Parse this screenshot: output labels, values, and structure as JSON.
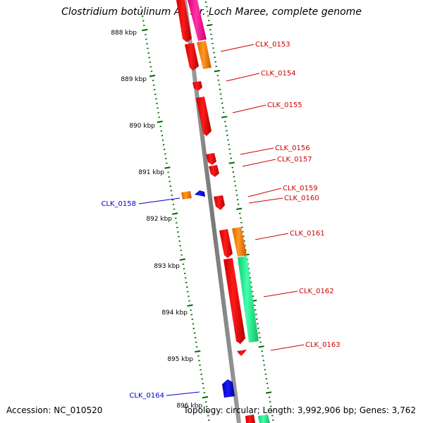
{
  "title": "Clostridium botulinum A3 str. Loch Maree, complete genome",
  "accession": "Accession: NC_010520",
  "summary": "Topology: circular; Length: 3,992,906 bp; Genes: 3,762",
  "kbp_ticks": [
    "888 kbp",
    "889 kbp",
    "890 kbp",
    "891 kbp",
    "892 kbp",
    "893 kbp",
    "894 kbp",
    "895 kbp",
    "896 kbp"
  ],
  "forward_genes": [
    {
      "label": "CLK_0153",
      "color": "#ff0000"
    },
    {
      "label": "CLK_0154",
      "color": "#ff0000"
    },
    {
      "label": "CLK_0155",
      "color": "#ff0000"
    },
    {
      "label": "CLK_0156",
      "color": "#ff0000"
    },
    {
      "label": "CLK_0157",
      "color": "#ff0000"
    },
    {
      "label": "CLK_0159",
      "color": "#ff0000"
    },
    {
      "label": "CLK_0160",
      "color": "#ff0000"
    },
    {
      "label": "CLK_0161",
      "color": "#ff0000"
    },
    {
      "label": "CLK_0162",
      "color": "#ff0000"
    },
    {
      "label": "CLK_0163",
      "color": "#ff0000"
    }
  ],
  "reverse_genes": [
    {
      "label": "CLK_0158",
      "color": "#0000cc"
    },
    {
      "label": "CLK_0164",
      "color": "#0000cc"
    }
  ],
  "colors": {
    "forward_label": "#cc0000",
    "reverse_label": "#0000cc",
    "backbone": "#888888",
    "tick": "#006600",
    "cog_orange": "#ff8800",
    "cog_pink": "#ff2299",
    "cog_green": "#22ee99"
  }
}
